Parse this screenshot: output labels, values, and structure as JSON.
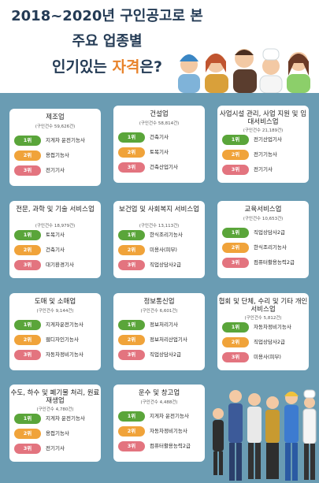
{
  "header": {
    "line1": "2018~2020년 구인공고로 본",
    "line2": "주요 업종별",
    "line3_a": "인기있는 ",
    "line3_b": "자격",
    "line3_c": "은?"
  },
  "cards": [
    {
      "title": "제조업",
      "sub": "(구인건수 59,626건)",
      "items": [
        "지게차 운전기능사",
        "용접기능사",
        "전기기사"
      ]
    },
    {
      "title": "건설업",
      "sub": "(구인건수 58,814건)",
      "items": [
        "건축기사",
        "토목기사",
        "건축산업기사"
      ]
    },
    {
      "title": "사업시설 관리, 사업 지원 및 임대서비스업",
      "sub": "(구인건수 21,189건)",
      "items": [
        "전기산업기사",
        "전기기능사",
        "전기기사"
      ]
    },
    {
      "title": "전문, 과학 및 기술 서비스업",
      "sub": "(구인건수 18,979건)",
      "items": [
        "토목기사",
        "건축기사",
        "대기환경기사"
      ]
    },
    {
      "title": "보건업 및 사회복지 서비스업",
      "sub": "(구인건수 13,113건)",
      "items": [
        "한식조리기능사",
        "미용사(피부)",
        "직업상담사2급"
      ]
    },
    {
      "title": "교육서비스업",
      "sub": "(구인건수 10,653건)",
      "items": [
        "직업상담사2급",
        "한식조리기능사",
        "컴퓨터활용능력2급"
      ]
    },
    {
      "title": "도매 및 소매업",
      "sub": "(구인건수 9,144건)",
      "items": [
        "지게차운전기능사",
        "웹디자인기능사",
        "자동차정비기능사"
      ]
    },
    {
      "title": "정보통신업",
      "sub": "(구인건수 6,601건)",
      "items": [
        "정보처리기사",
        "정보처리산업기사",
        "직업상담사2급"
      ]
    },
    {
      "title": "협회 및 단체, 수리 및 기타 개인 서비스업",
      "sub": "(구인건수 5,812건)",
      "items": [
        "자동차정비기능사",
        "직업상담사2급",
        "미용사(피부)"
      ]
    },
    {
      "title": "수도, 하수 및 폐기물 처리, 원료 재생업",
      "sub": "(구인건수 4,780건)",
      "items": [
        "지게차 운전기능사",
        "용접기능사",
        "전기기사"
      ]
    },
    {
      "title": "운수 및 창고업",
      "sub": "(구인건수 4,488건)",
      "items": [
        "지게차 운전기능사",
        "자동차정비기능사",
        "컴퓨터활용능력2급"
      ]
    }
  ],
  "ranks": [
    "1위",
    "2위",
    "3위"
  ],
  "colors": {
    "panel": "#6a9cb3",
    "rank1": "#5aa53a",
    "rank2": "#f0a33a",
    "rank3": "#e3747f",
    "title": "#243b55",
    "accent": "#e8832b"
  }
}
